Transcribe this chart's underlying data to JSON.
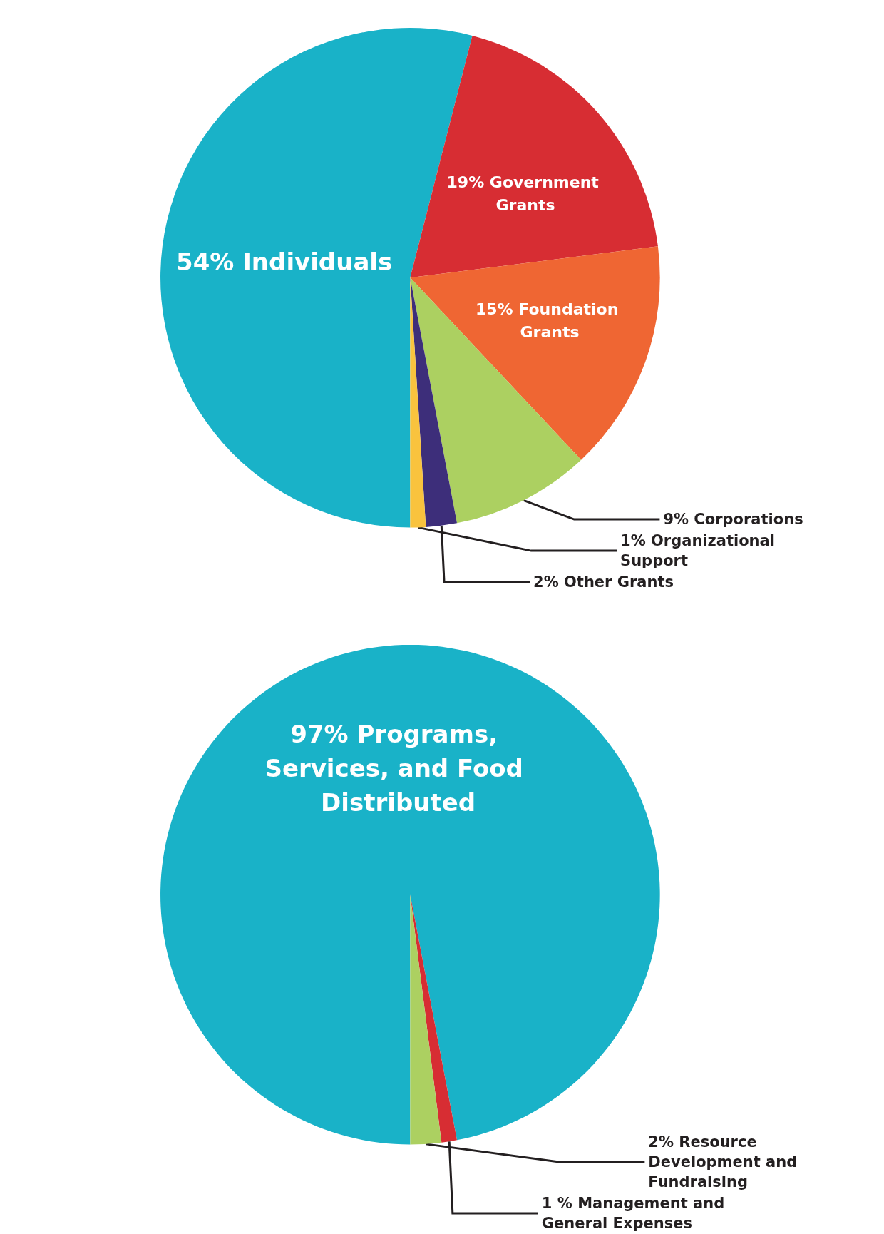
{
  "chart_data": [
    {
      "type": "pie",
      "categories": [
        "Individuals",
        "Government Grants",
        "Foundation Grants",
        "Corporations",
        "Other Grants",
        "Organizational Support"
      ],
      "values": [
        54,
        19,
        15,
        9,
        2,
        1
      ],
      "value_labels": [
        "54%",
        "19%",
        "15%",
        "9%",
        "2%",
        "1%"
      ],
      "colors": [
        "#19b2c8",
        "#d72d33",
        "#ef6633",
        "#acd061",
        "#3d2e7a",
        "#f9c33e"
      ]
    },
    {
      "type": "pie",
      "categories": [
        "Programs, Services, and Food Distributed",
        "Management and General Expenses",
        "Resource Development and Fundraising"
      ],
      "values": [
        97,
        1,
        2
      ],
      "value_labels": [
        "97%",
        "1 %",
        "2%"
      ],
      "colors": [
        "#19b2c8",
        "#d72d33",
        "#acd061"
      ]
    }
  ]
}
